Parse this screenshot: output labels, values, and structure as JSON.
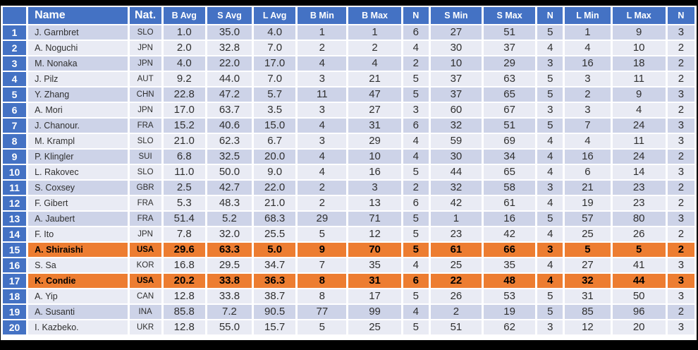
{
  "colors": {
    "header_blue": "#4472C4",
    "band_dark": "#CDD3E8",
    "band_light": "#E9EBF4",
    "highlight_orange": "#ED7D31",
    "highlight_green": "#A9D18E",
    "frame_black": "#000000",
    "header_text": "#FFFFFF",
    "body_text": "#2F2F2F"
  },
  "table": {
    "columns": [
      {
        "key": "rank",
        "label": ""
      },
      {
        "key": "name",
        "label": "Name"
      },
      {
        "key": "nat",
        "label": "Nat."
      },
      {
        "key": "b_avg",
        "label": "B Avg"
      },
      {
        "key": "s_avg",
        "label": "S Avg"
      },
      {
        "key": "l_avg",
        "label": "L Avg"
      },
      {
        "key": "b_min",
        "label": "B Min"
      },
      {
        "key": "b_max",
        "label": "B Max"
      },
      {
        "key": "n_b",
        "label": "N"
      },
      {
        "key": "s_min",
        "label": "S Min"
      },
      {
        "key": "s_max",
        "label": "S Max"
      },
      {
        "key": "n_s",
        "label": "N"
      },
      {
        "key": "l_min",
        "label": "L Min"
      },
      {
        "key": "l_max",
        "label": "L Max"
      },
      {
        "key": "n_l",
        "label": "N"
      }
    ],
    "rows": [
      {
        "rank": "1",
        "name": "J. Garnbret",
        "nat": "SLO",
        "values": [
          "1.0",
          "35.0",
          "4.0",
          "1",
          "1",
          "6",
          "27",
          "51",
          "5",
          "1",
          "9",
          "3"
        ],
        "green": [
          0,
          3,
          4,
          5
        ]
      },
      {
        "rank": "2",
        "name": "A. Noguchi",
        "nat": "JPN",
        "values": [
          "2.0",
          "32.8",
          "7.0",
          "2",
          "2",
          "4",
          "30",
          "37",
          "4",
          "4",
          "10",
          "2"
        ]
      },
      {
        "rank": "3",
        "name": "M. Nonaka",
        "nat": "JPN",
        "values": [
          "4.0",
          "22.0",
          "17.0",
          "4",
          "4",
          "2",
          "10",
          "29",
          "3",
          "16",
          "18",
          "2"
        ]
      },
      {
        "rank": "4",
        "name": "J. Pilz",
        "nat": "AUT",
        "values": [
          "9.2",
          "44.0",
          "7.0",
          "3",
          "21",
          "5",
          "37",
          "63",
          "5",
          "3",
          "11",
          "2"
        ]
      },
      {
        "rank": "5",
        "name": "Y. Zhang",
        "nat": "CHN",
        "values": [
          "22.8",
          "47.2",
          "5.7",
          "11",
          "47",
          "5",
          "37",
          "65",
          "5",
          "2",
          "9",
          "3"
        ]
      },
      {
        "rank": "6",
        "name": "A. Mori",
        "nat": "JPN",
        "values": [
          "17.0",
          "63.7",
          "3.5",
          "3",
          "27",
          "3",
          "60",
          "67",
          "3",
          "3",
          "4",
          "2"
        ]
      },
      {
        "rank": "7",
        "name": "J. Chanour.",
        "nat": "FRA",
        "values": [
          "15.2",
          "40.6",
          "15.0",
          "4",
          "31",
          "6",
          "32",
          "51",
          "5",
          "7",
          "24",
          "3"
        ]
      },
      {
        "rank": "8",
        "name": "M. Krampl",
        "nat": "SLO",
        "values": [
          "21.0",
          "62.3",
          "6.7",
          "3",
          "29",
          "4",
          "59",
          "69",
          "4",
          "4",
          "11",
          "3"
        ]
      },
      {
        "rank": "9",
        "name": "P. Klingler",
        "nat": "SUI",
        "values": [
          "6.8",
          "32.5",
          "20.0",
          "4",
          "10",
          "4",
          "30",
          "34",
          "4",
          "16",
          "24",
          "2"
        ]
      },
      {
        "rank": "10",
        "name": "L. Rakovec",
        "nat": "SLO",
        "values": [
          "11.0",
          "50.0",
          "9.0",
          "4",
          "16",
          "5",
          "44",
          "65",
          "4",
          "6",
          "14",
          "3"
        ]
      },
      {
        "rank": "11",
        "name": "S. Coxsey",
        "nat": "GBR",
        "values": [
          "2.5",
          "42.7",
          "22.0",
          "2",
          "3",
          "2",
          "32",
          "58",
          "3",
          "21",
          "23",
          "2"
        ]
      },
      {
        "rank": "12",
        "name": "F. Gibert",
        "nat": "FRA",
        "values": [
          "5.3",
          "48.3",
          "21.0",
          "2",
          "13",
          "6",
          "42",
          "61",
          "4",
          "19",
          "23",
          "2"
        ]
      },
      {
        "rank": "13",
        "name": "A. Jaubert",
        "nat": "FRA",
        "values": [
          "51.4",
          "5.2",
          "68.3",
          "29",
          "71",
          "5",
          "1",
          "16",
          "5",
          "57",
          "80",
          "3"
        ]
      },
      {
        "rank": "14",
        "name": "F. Ito",
        "nat": "JPN",
        "values": [
          "7.8",
          "32.0",
          "25.5",
          "5",
          "12",
          "5",
          "23",
          "42",
          "4",
          "25",
          "26",
          "2"
        ]
      },
      {
        "rank": "15",
        "name": "A. Shiraishi",
        "nat": "USA",
        "values": [
          "29.6",
          "63.3",
          "5.0",
          "9",
          "70",
          "5",
          "61",
          "66",
          "3",
          "5",
          "5",
          "2"
        ],
        "highlight": "orange"
      },
      {
        "rank": "16",
        "name": "S. Sa",
        "nat": "KOR",
        "values": [
          "16.8",
          "29.5",
          "34.7",
          "7",
          "35",
          "4",
          "25",
          "35",
          "4",
          "27",
          "41",
          "3"
        ]
      },
      {
        "rank": "17",
        "name": "K. Condie",
        "nat": "USA",
        "values": [
          "20.2",
          "33.8",
          "36.3",
          "8",
          "31",
          "6",
          "22",
          "48",
          "4",
          "32",
          "44",
          "3"
        ],
        "highlight": "orange"
      },
      {
        "rank": "18",
        "name": "A. Yip",
        "nat": "CAN",
        "values": [
          "12.8",
          "33.8",
          "38.7",
          "8",
          "17",
          "5",
          "26",
          "53",
          "5",
          "31",
          "50",
          "3"
        ]
      },
      {
        "rank": "19",
        "name": "A. Susanti",
        "nat": "INA",
        "values": [
          "85.8",
          "7.2",
          "90.5",
          "77",
          "99",
          "4",
          "2",
          "19",
          "5",
          "85",
          "96",
          "2"
        ]
      },
      {
        "rank": "20",
        "name": "I. Kazbeko.",
        "nat": "UKR",
        "values": [
          "12.8",
          "55.0",
          "15.7",
          "5",
          "25",
          "5",
          "51",
          "62",
          "3",
          "12",
          "20",
          "3"
        ]
      }
    ]
  }
}
